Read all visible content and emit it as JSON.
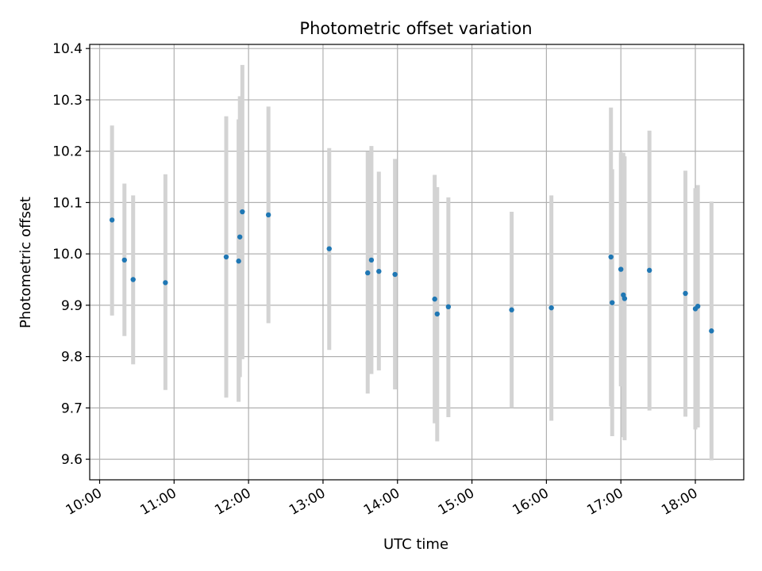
{
  "chart_data": {
    "type": "scatter",
    "title": "Photometric offset variation",
    "xlabel": "UTC time",
    "ylabel": "Photometric offset",
    "xlim": [
      "09:52",
      "18:39"
    ],
    "ylim": [
      9.56,
      10.408
    ],
    "grid": true,
    "x_ticks": [
      "10:00",
      "11:00",
      "12:00",
      "13:00",
      "14:00",
      "15:00",
      "16:00",
      "17:00",
      "18:00"
    ],
    "y_ticks": [
      "9.6",
      "9.7",
      "9.8",
      "9.9",
      "10.0",
      "10.1",
      "10.2",
      "10.3",
      "10.4"
    ],
    "errorbar_color": "#d3d3d3",
    "point_color": "#1f77b4",
    "points": [
      {
        "time": "10:10",
        "y": 10.066,
        "ylo": 9.88,
        "yhi": 10.25
      },
      {
        "time": "10:20",
        "y": 9.988,
        "ylo": 9.84,
        "yhi": 10.137
      },
      {
        "time": "10:27",
        "y": 9.95,
        "ylo": 9.785,
        "yhi": 10.114
      },
      {
        "time": "10:53",
        "y": 9.944,
        "ylo": 9.735,
        "yhi": 10.155
      },
      {
        "time": "11:42",
        "y": 9.994,
        "ylo": 9.72,
        "yhi": 10.268
      },
      {
        "time": "11:52",
        "y": 9.986,
        "ylo": 9.712,
        "yhi": 10.262
      },
      {
        "time": "11:53",
        "y": 10.033,
        "ylo": 9.76,
        "yhi": 10.307
      },
      {
        "time": "11:55",
        "y": 10.082,
        "ylo": 9.795,
        "yhi": 10.368
      },
      {
        "time": "12:16",
        "y": 10.076,
        "ylo": 9.865,
        "yhi": 10.287
      },
      {
        "time": "13:05",
        "y": 10.01,
        "ylo": 9.813,
        "yhi": 10.206
      },
      {
        "time": "13:36",
        "y": 9.963,
        "ylo": 9.728,
        "yhi": 10.199
      },
      {
        "time": "13:39",
        "y": 9.988,
        "ylo": 9.766,
        "yhi": 10.21
      },
      {
        "time": "13:45",
        "y": 9.966,
        "ylo": 9.773,
        "yhi": 10.16
      },
      {
        "time": "13:58",
        "y": 9.96,
        "ylo": 9.736,
        "yhi": 10.185
      },
      {
        "time": "14:30",
        "y": 9.912,
        "ylo": 9.67,
        "yhi": 10.154
      },
      {
        "time": "14:32",
        "y": 9.883,
        "ylo": 9.635,
        "yhi": 10.13
      },
      {
        "time": "14:41",
        "y": 9.897,
        "ylo": 9.682,
        "yhi": 10.11
      },
      {
        "time": "15:32",
        "y": 9.891,
        "ylo": 9.7,
        "yhi": 10.082
      },
      {
        "time": "16:04",
        "y": 9.895,
        "ylo": 9.675,
        "yhi": 10.114
      },
      {
        "time": "16:52",
        "y": 9.994,
        "ylo": 9.703,
        "yhi": 10.285
      },
      {
        "time": "16:53",
        "y": 9.905,
        "ylo": 9.645,
        "yhi": 10.165
      },
      {
        "time": "17:00",
        "y": 9.97,
        "ylo": 9.742,
        "yhi": 10.198
      },
      {
        "time": "17:02",
        "y": 9.92,
        "ylo": 9.643,
        "yhi": 10.197
      },
      {
        "time": "17:03",
        "y": 9.913,
        "ylo": 9.637,
        "yhi": 10.19
      },
      {
        "time": "17:23",
        "y": 9.968,
        "ylo": 9.695,
        "yhi": 10.24
      },
      {
        "time": "17:52",
        "y": 9.923,
        "ylo": 9.683,
        "yhi": 10.162
      },
      {
        "time": "18:00",
        "y": 9.893,
        "ylo": 9.658,
        "yhi": 10.128
      },
      {
        "time": "18:02",
        "y": 9.898,
        "ylo": 9.662,
        "yhi": 10.134
      },
      {
        "time": "18:13",
        "y": 9.85,
        "ylo": 9.598,
        "yhi": 10.102
      }
    ]
  }
}
